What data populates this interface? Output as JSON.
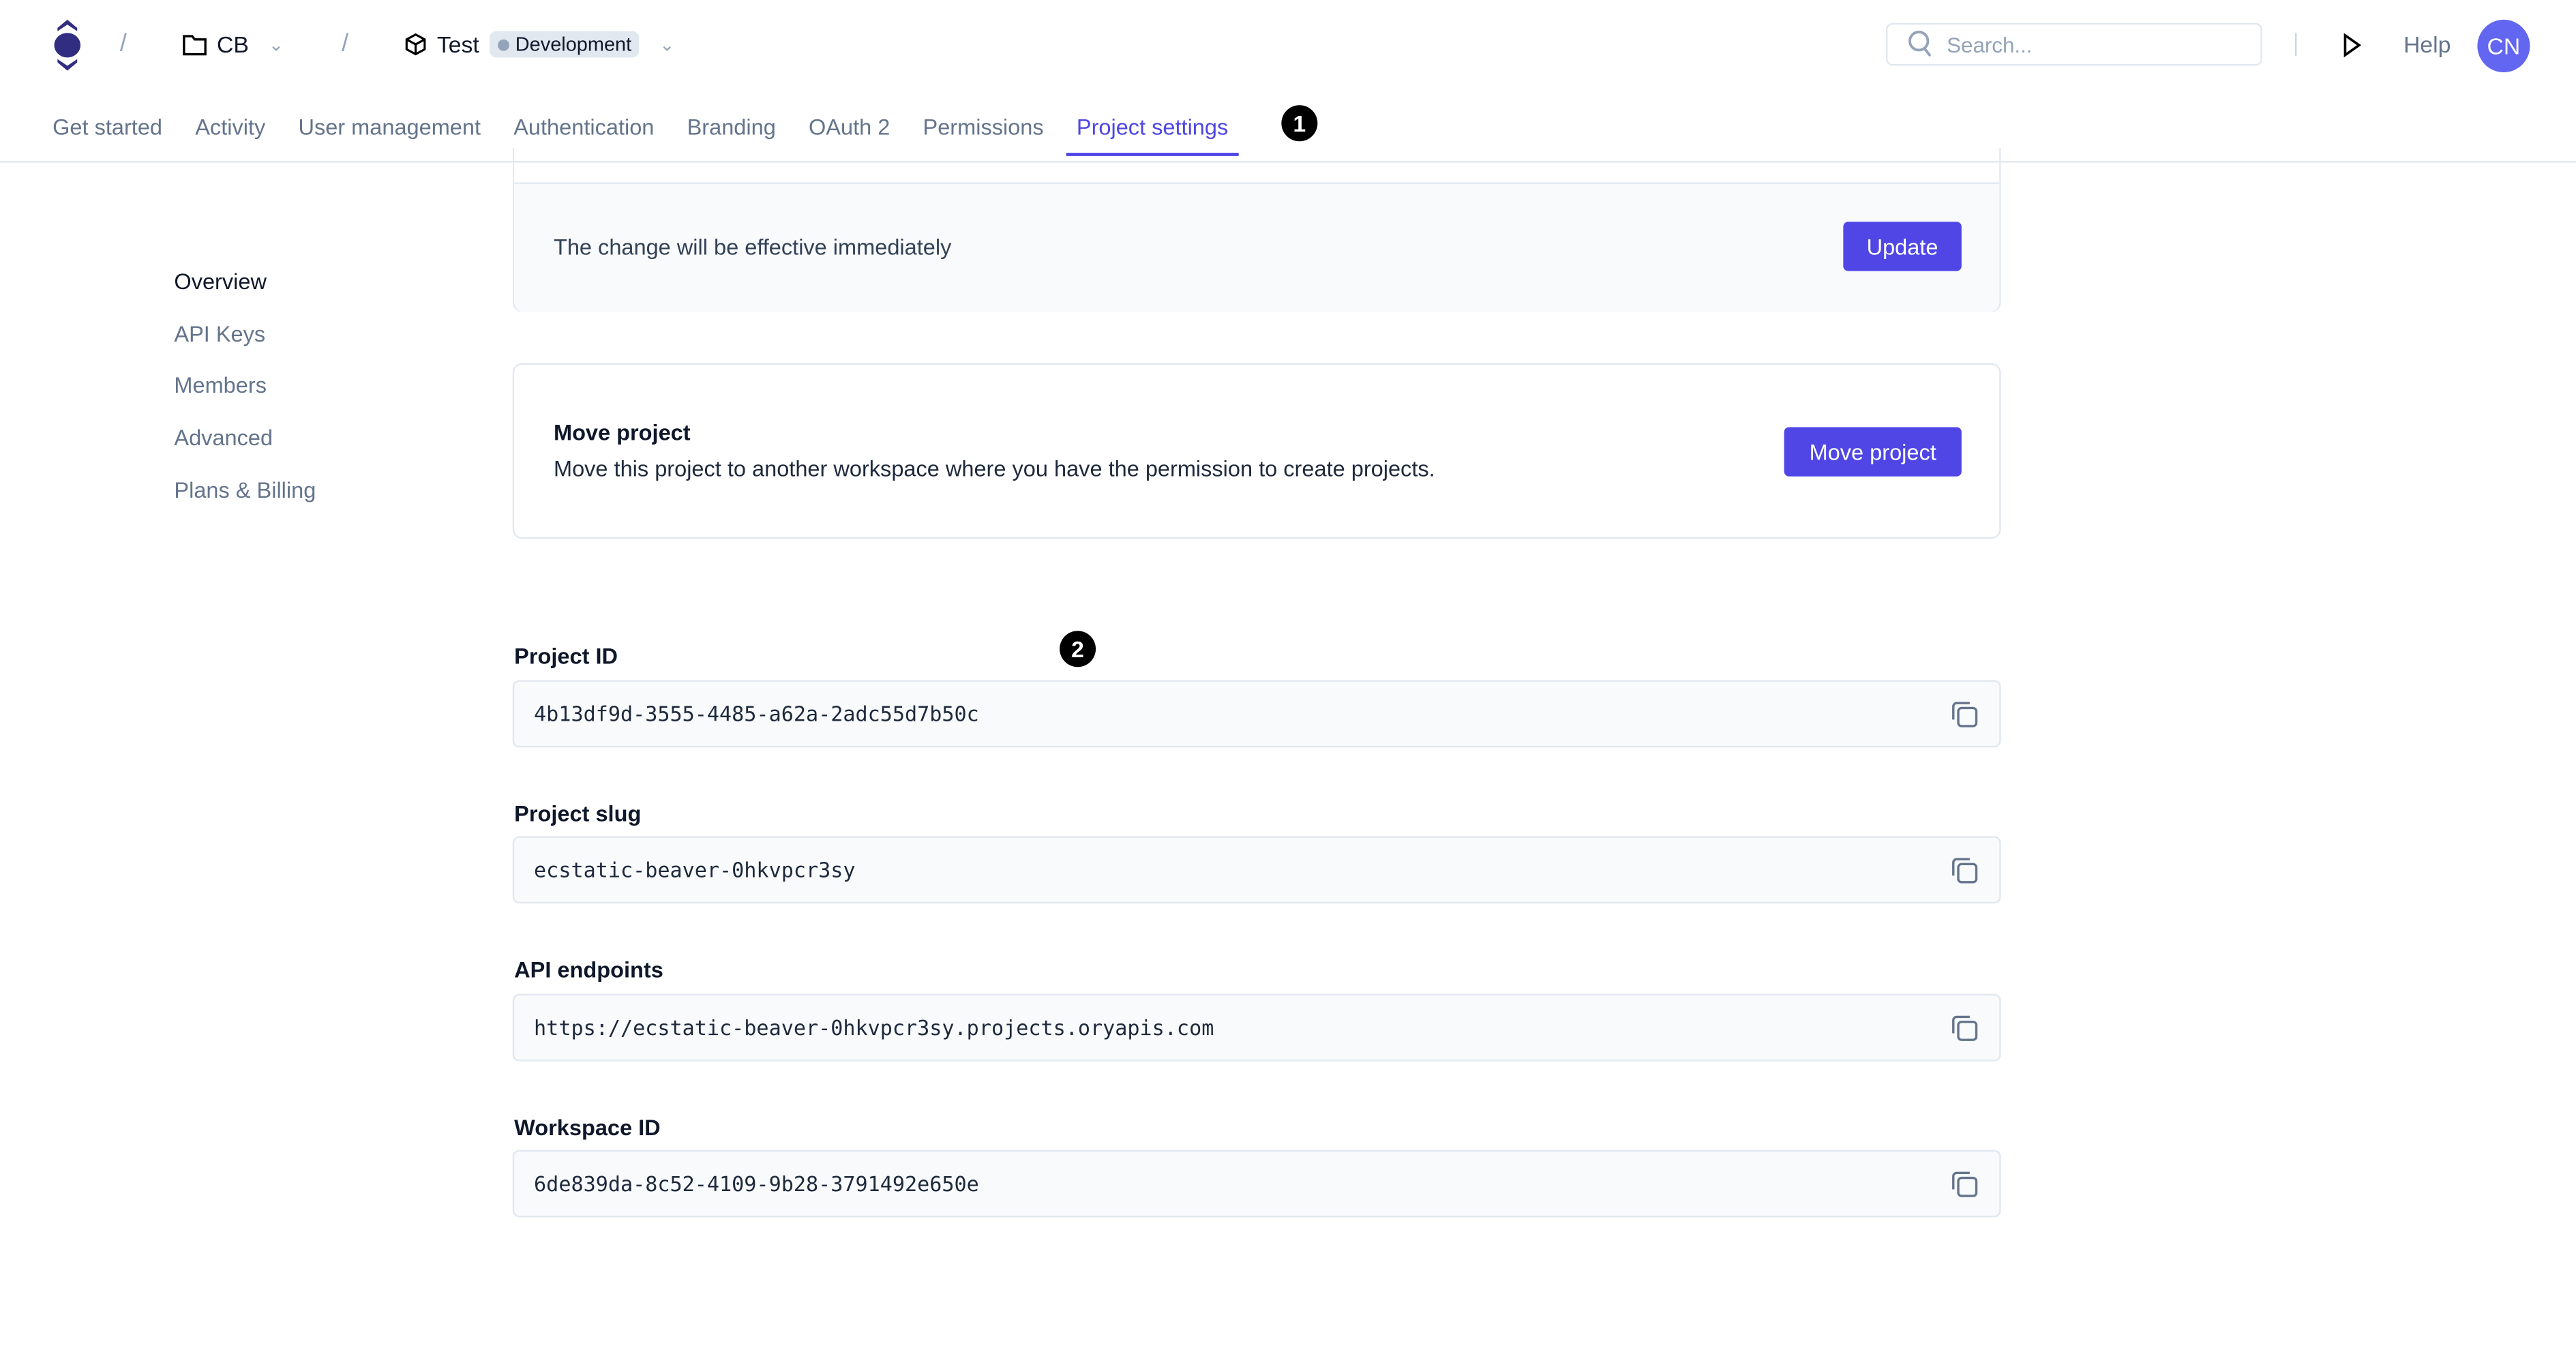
{
  "header": {
    "breadcrumb_separator": "/",
    "workspace": "CB",
    "project": "Test",
    "environment_badge": "Development",
    "search_placeholder": "Search...",
    "help": "Help",
    "avatar_initials": "CN"
  },
  "tabs": [
    {
      "label": "Get started"
    },
    {
      "label": "Activity"
    },
    {
      "label": "User management"
    },
    {
      "label": "Authentication"
    },
    {
      "label": "Branding"
    },
    {
      "label": "OAuth 2"
    },
    {
      "label": "Permissions"
    },
    {
      "label": "Project settings",
      "active": true
    }
  ],
  "annotations": [
    "1",
    "2"
  ],
  "sidebar": [
    {
      "label": "Overview",
      "active": true
    },
    {
      "label": "API Keys"
    },
    {
      "label": "Members"
    },
    {
      "label": "Advanced"
    },
    {
      "label": "Plans & Billing"
    }
  ],
  "update_card": {
    "text": "The change will be effective immediately",
    "button": "Update"
  },
  "move_card": {
    "title": "Move project",
    "text": "Move this project to another workspace where you have the permission to create projects.",
    "button": "Move project"
  },
  "fields": [
    {
      "label": "Project ID",
      "value": "4b13df9d-3555-4485-a62a-2adc55d7b50c"
    },
    {
      "label": "Project slug",
      "value": "ecstatic-beaver-0hkvpcr3sy"
    },
    {
      "label": "API endpoints",
      "value": "https://ecstatic-beaver-0hkvpcr3sy.projects.oryapis.com"
    },
    {
      "label": "Workspace ID",
      "value": "6de839da-8c52-4109-9b28-3791492e650e"
    }
  ],
  "colors": {
    "accent": "#4f46e5",
    "avatar": "#6366f1",
    "logo": "#312e81"
  }
}
